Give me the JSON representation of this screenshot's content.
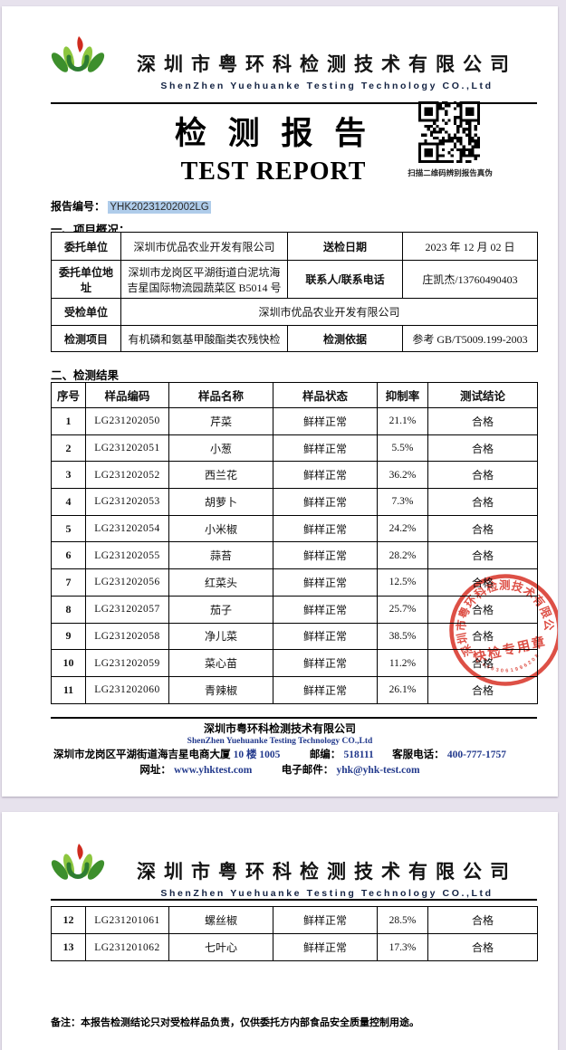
{
  "colors": {
    "stamp_red": "#d9372c",
    "selection_blue": "#afccea",
    "link_navy": "#22398c",
    "viewer_bg": "#e7e2ed"
  },
  "header": {
    "company_cn": "深圳市粤环科检测技术有限公司",
    "company_en": "ShenZhen Yuehuanke Testing Technology CO.,Ltd"
  },
  "title": {
    "cn": "检 测 报 告",
    "en": "TEST REPORT"
  },
  "qr": {
    "caption": "扫描二维码辨别报告真伪"
  },
  "report_no": {
    "label": "报告编号：",
    "value": "YHK20231202002LG"
  },
  "overview": {
    "heading": "一、项目概况：",
    "rows": [
      {
        "l1": "委托单位",
        "v1": "深圳市优品农业开发有限公司",
        "l2": "送检日期",
        "v2": "2023 年 12 月 02 日"
      },
      {
        "l1": "委托单位地址",
        "v1": "深圳市龙岗区平湖街道白泥坑海吉星国际物流园蔬菜区 B5014 号",
        "l2": "联系人/联系电话",
        "v2": "庄凯杰/13760490403"
      },
      {
        "l1": "受检单位",
        "v1": "深圳市优品农业开发有限公司"
      },
      {
        "l1": "检测项目",
        "v1": "有机磷和氨基甲酸酯类农残快检",
        "l2": "检测依据",
        "v2": "参考 GB/T5009.199-2003"
      }
    ]
  },
  "results": {
    "heading": "二、检测结果",
    "headers": [
      "序号",
      "样品编码",
      "样品名称",
      "样品状态",
      "抑制率",
      "测试结论"
    ],
    "page_break_after_row": 11,
    "rows": [
      [
        "1",
        "LG231202050",
        "芹菜",
        "鲜样正常",
        "21.1%",
        "合格"
      ],
      [
        "2",
        "LG231202051",
        "小葱",
        "鲜样正常",
        "5.5%",
        "合格"
      ],
      [
        "3",
        "LG231202052",
        "西兰花",
        "鲜样正常",
        "36.2%",
        "合格"
      ],
      [
        "4",
        "LG231202053",
        "胡萝卜",
        "鲜样正常",
        "7.3%",
        "合格"
      ],
      [
        "5",
        "LG231202054",
        "小米椒",
        "鲜样正常",
        "24.2%",
        "合格"
      ],
      [
        "6",
        "LG231202055",
        "蒜苔",
        "鲜样正常",
        "28.2%",
        "合格"
      ],
      [
        "7",
        "LG231202056",
        "红菜头",
        "鲜样正常",
        "12.5%",
        "合格"
      ],
      [
        "8",
        "LG231202057",
        "茄子",
        "鲜样正常",
        "25.7%",
        "合格"
      ],
      [
        "9",
        "LG231202058",
        "净儿菜",
        "鲜样正常",
        "38.5%",
        "合格"
      ],
      [
        "10",
        "LG231202059",
        "菜心苗",
        "鲜样正常",
        "11.2%",
        "合格"
      ],
      [
        "11",
        "LG231202060",
        "青辣椒",
        "鲜样正常",
        "26.1%",
        "合格"
      ],
      [
        "12",
        "LG231201061",
        "螺丝椒",
        "鲜样正常",
        "28.5%",
        "合格"
      ],
      [
        "13",
        "LG231201062",
        "七叶心",
        "鲜样正常",
        "17.3%",
        "合格"
      ]
    ]
  },
  "stamp": {
    "ring_text": "深圳市粤环科检测技术有限公司",
    "center_text": "快检专用章",
    "serial": "4403061996208"
  },
  "footer": {
    "company_cn": "深圳市粤环科检测技术有限公司",
    "company_en": "ShenZhen Yuehuanke Testing Technology CO.,Ltd",
    "address_cn": "深圳市龙岗区平湖街道海吉星电商大厦",
    "address_num": "10 楼 1005",
    "post_label": "邮编：",
    "post_code": "518111",
    "tel_label": "客服电话：",
    "tel": "400-777-1757",
    "web_label": "网址：",
    "web": "www.yhktest.com",
    "email_label": "电子邮件：",
    "email": "yhk@yhk-test.com"
  },
  "note": "备注：本报告检测结论只对受检样品负责，仅供委托方内部食品安全质量控制用途。"
}
